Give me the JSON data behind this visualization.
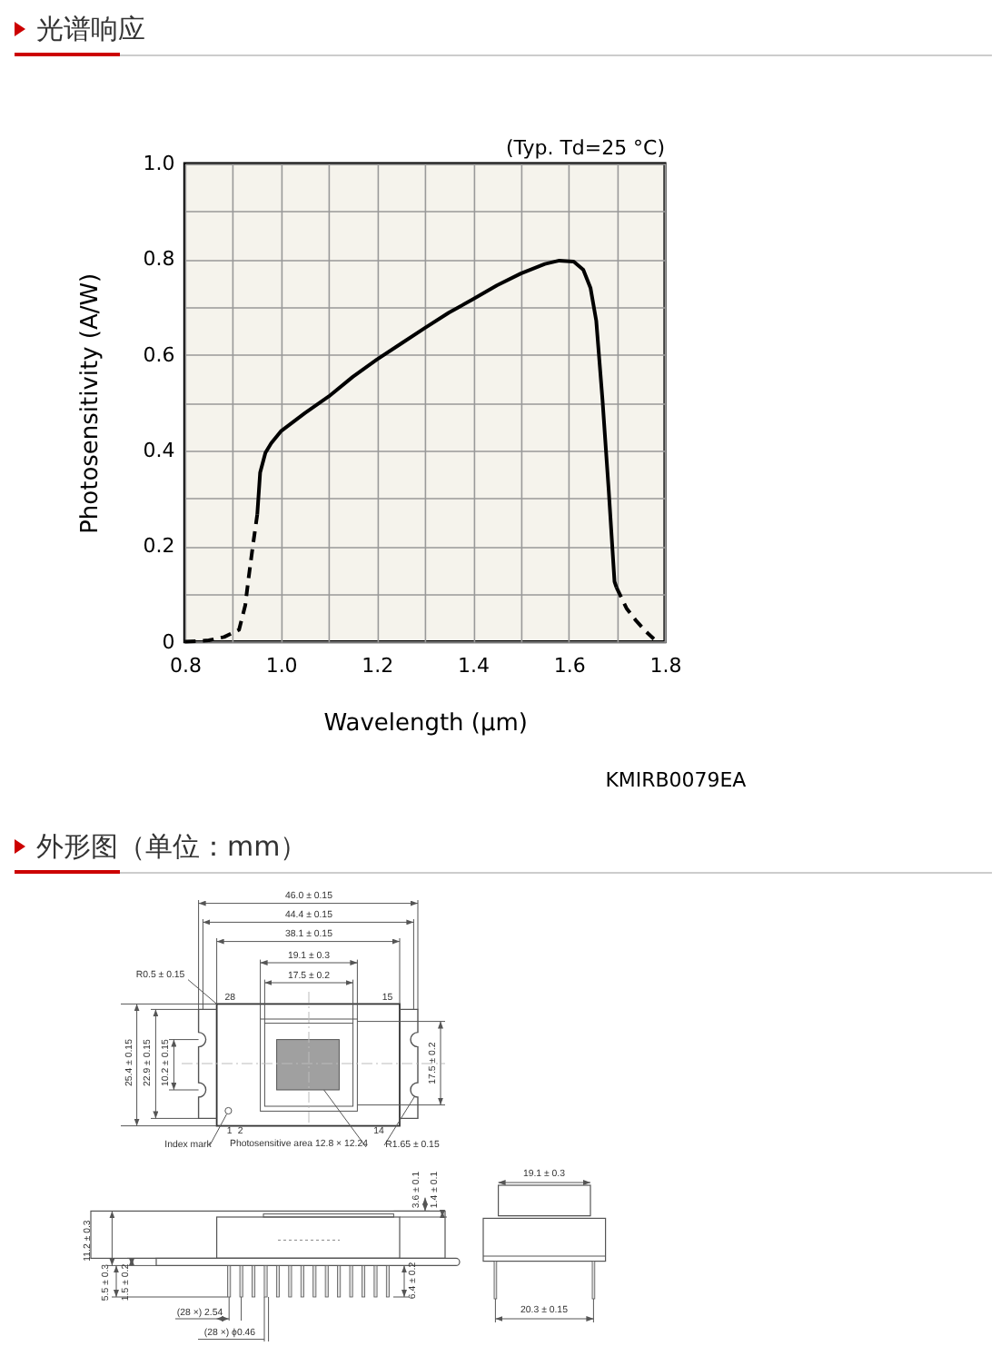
{
  "chart_data": [
    {
      "type": "line",
      "title": "光谱响应",
      "xlabel": "Wavelength (μm)",
      "ylabel": "Photosensitivity (A/W)",
      "annotations": [
        "(Typ. Td=25 °C)",
        "KMIRB0079EA"
      ],
      "xlim": [
        0.8,
        1.8
      ],
      "ylim": [
        0,
        1.0
      ],
      "xticks": [
        0.8,
        {
          "value": 0.9,
          "label": null
        },
        {
          "value": 1.0,
          "label": "1.0"
        },
        {
          "value": 1.1,
          "label": null
        },
        1.2,
        {
          "value": 1.3,
          "label": null
        },
        1.4,
        {
          "value": 1.5,
          "label": null
        },
        1.6,
        {
          "value": 1.7,
          "label": null
        },
        1.8
      ],
      "yticks": [
        0,
        {
          "value": 0.1,
          "label": null
        },
        0.2,
        {
          "value": 0.3,
          "label": null
        },
        0.4,
        {
          "value": 0.5,
          "label": null
        },
        0.6,
        {
          "value": 0.7,
          "label": null
        },
        0.8,
        {
          "value": 0.9,
          "label": null
        },
        {
          "value": 1.0,
          "label": "1.0"
        }
      ],
      "grid": true,
      "series": [
        {
          "color": "#000000",
          "line_style": "dashed",
          "x": [
            0.8,
            0.85,
            0.882,
            0.913,
            0.926,
            0.932,
            0.942,
            0.951
          ],
          "values": [
            0,
            0.003,
            0.01,
            0.025,
            0.076,
            0.126,
            0.202,
            0.266
          ]
        },
        {
          "color": "#000000",
          "line_style": "solid",
          "x": [
            0.951,
            0.957,
            0.968,
            0.98,
            1.0,
            1.05,
            1.1,
            1.15,
            1.2,
            1.25,
            1.3,
            1.35,
            1.4,
            1.45,
            1.5,
            1.55,
            1.58,
            1.61,
            1.63,
            1.645,
            1.657,
            1.67,
            1.683,
            1.695,
            1.699
          ],
          "values": [
            0.266,
            0.354,
            0.395,
            0.415,
            0.44,
            0.478,
            0.513,
            0.554,
            0.59,
            0.623,
            0.656,
            0.688,
            0.716,
            0.745,
            0.77,
            0.79,
            0.797,
            0.795,
            0.778,
            0.74,
            0.671,
            0.506,
            0.316,
            0.126,
            0.114
          ]
        },
        {
          "color": "#000000",
          "line_style": "dashed",
          "x": [
            1.699,
            1.72,
            1.74,
            1.76,
            1.777
          ],
          "values": [
            0.114,
            0.07,
            0.044,
            0.022,
            0.006
          ]
        }
      ]
    },
    {
      "type": "other",
      "title": "外形图（单位：mm）",
      "annotations": [
        "46.0 ± 0.15",
        "44.4 ± 0.15",
        "38.1 ± 0.15",
        "19.1 ± 0.3",
        "17.5 ± 0.2",
        "R0.5 ± 0.15",
        "28",
        "15",
        "25.4 ± 0.15",
        "22.9 ± 0.15",
        "10.2 ± 0.15",
        "17.5 ± 0.2",
        "1",
        "2",
        "14",
        "Index mark",
        "Photosensitive area 12.8 × 12.24",
        "R1.65 ± 0.15",
        "11.2 ± 0.3",
        "5.5 ± 0.3",
        "1.5 ± 0.2",
        "3.6 ± 0.1",
        "1.4 ± 0.1",
        "6.4 ± 0.2",
        "(28 ×) 2.54",
        "(28 ×) ϕ0.46",
        "19.1 ± 0.3",
        "20.3 ± 0.15"
      ]
    }
  ]
}
